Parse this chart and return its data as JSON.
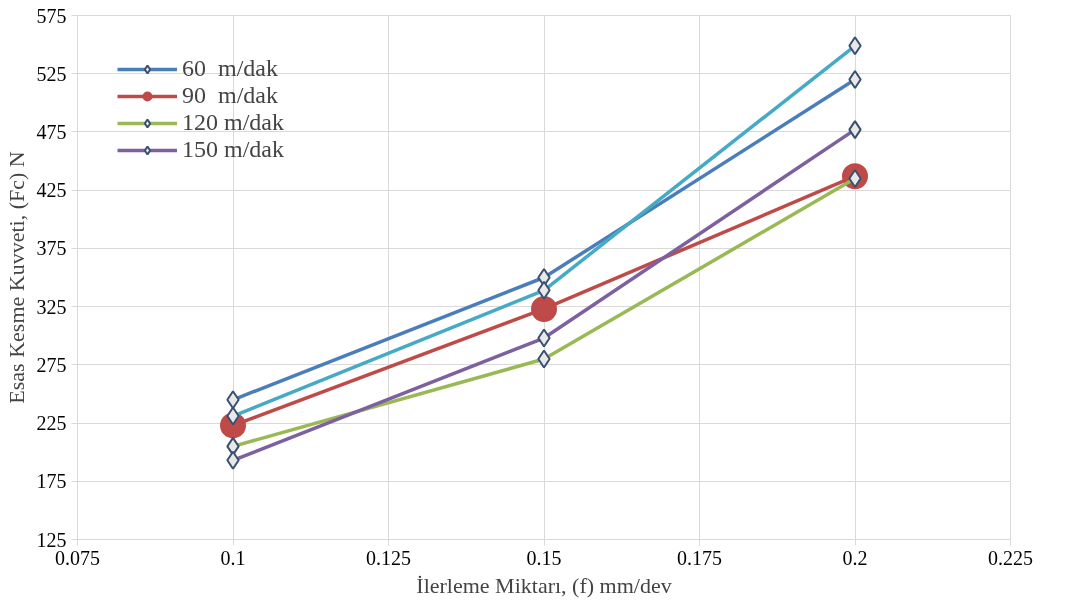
{
  "chart_data": {
    "type": "line",
    "xlabel": "İlerleme Miktarı, (f) mm/dev",
    "ylabel": "Esas Kesme Kuvveti, (Fc) N",
    "x": [
      0.1,
      0.15,
      0.2
    ],
    "series": [
      {
        "name": "60  m/dak",
        "color": "#4a7ebb",
        "marker": "diamond",
        "values": [
          245,
          350,
          520
        ]
      },
      {
        "name": "90  m/dak",
        "color": "#be4b48",
        "marker": "circle",
        "values": [
          223,
          323,
          437
        ]
      },
      {
        "name": "120 m/dak",
        "color": "#98b954",
        "marker": "diamond",
        "values": [
          205,
          280,
          435
        ]
      },
      {
        "name": "150 m/dak",
        "color": "#7d60a0",
        "marker": "diamond",
        "values": [
          193,
          298,
          477
        ]
      },
      {
        "color": "#46aac5",
        "marker": "diamond",
        "values": [
          231,
          339,
          549
        ]
      }
    ],
    "xlim": [
      0.075,
      0.225
    ],
    "xticks": [
      0.075,
      0.1,
      0.125,
      0.15,
      0.175,
      0.2,
      0.225
    ],
    "ylim": [
      125,
      575
    ],
    "yticks": [
      125,
      175,
      225,
      275,
      325,
      375,
      425,
      475,
      525,
      575
    ],
    "grid": true,
    "legend": "top left",
    "line_style": "solid"
  }
}
